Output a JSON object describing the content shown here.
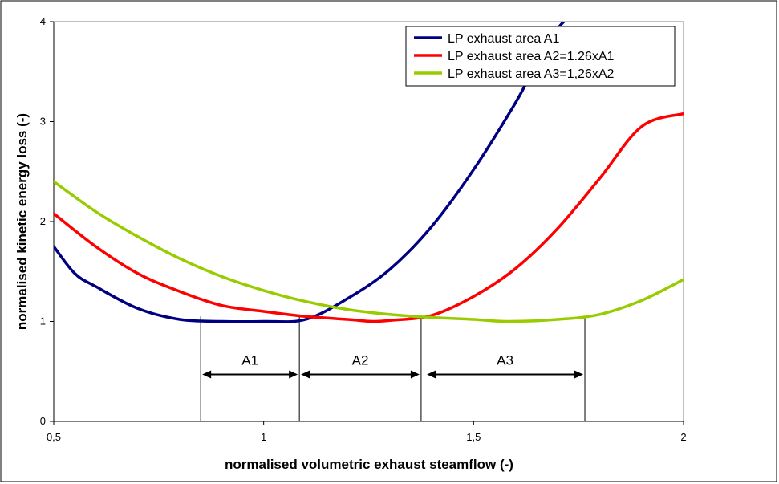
{
  "chart_data": {
    "type": "line",
    "title": "",
    "xlabel": "normalised volumetric exhaust steamflow (-)",
    "ylabel": "normalised kinetic energy loss (-)",
    "xlim": [
      0.5,
      2
    ],
    "ylim": [
      0,
      4
    ],
    "grid": false,
    "legend_position": "top-right",
    "x_ticks": [
      {
        "value": 0.5,
        "label": "0,5"
      },
      {
        "value": 1,
        "label": "1"
      },
      {
        "value": 1.5,
        "label": "1,5"
      },
      {
        "value": 2,
        "label": "2"
      }
    ],
    "y_ticks": [
      {
        "value": 0,
        "label": "0"
      },
      {
        "value": 1,
        "label": "1"
      },
      {
        "value": 2,
        "label": "2"
      },
      {
        "value": 3,
        "label": "3"
      },
      {
        "value": 4,
        "label": "4"
      }
    ],
    "series": [
      {
        "name": "LP exhaust area A1",
        "color": "#000080",
        "points": [
          [
            0.5,
            1.75
          ],
          [
            0.55,
            1.48
          ],
          [
            0.6,
            1.35
          ],
          [
            0.7,
            1.13
          ],
          [
            0.8,
            1.02
          ],
          [
            0.9,
            1.0
          ],
          [
            1.0,
            1.0
          ],
          [
            1.1,
            1.02
          ],
          [
            1.2,
            1.23
          ],
          [
            1.3,
            1.52
          ],
          [
            1.4,
            1.95
          ],
          [
            1.5,
            2.52
          ],
          [
            1.6,
            3.19
          ],
          [
            1.7,
            3.93
          ],
          [
            1.8,
            4.26
          ]
        ]
      },
      {
        "name": "LP exhaust area A2=1.26xA1",
        "color": "#ff0000",
        "points": [
          [
            0.5,
            2.08
          ],
          [
            0.6,
            1.75
          ],
          [
            0.7,
            1.48
          ],
          [
            0.8,
            1.3
          ],
          [
            0.9,
            1.16
          ],
          [
            1.0,
            1.1
          ],
          [
            1.1,
            1.05
          ],
          [
            1.2,
            1.02
          ],
          [
            1.26,
            1.0
          ],
          [
            1.3,
            1.01
          ],
          [
            1.4,
            1.06
          ],
          [
            1.5,
            1.25
          ],
          [
            1.6,
            1.53
          ],
          [
            1.7,
            1.93
          ],
          [
            1.8,
            2.43
          ],
          [
            1.9,
            2.95
          ],
          [
            2.0,
            3.08
          ]
        ]
      },
      {
        "name": "LP exhaust area A3=1,26xA2",
        "color": "#99cc00",
        "points": [
          [
            0.5,
            2.4
          ],
          [
            0.6,
            2.1
          ],
          [
            0.7,
            1.85
          ],
          [
            0.8,
            1.63
          ],
          [
            0.9,
            1.45
          ],
          [
            1.0,
            1.31
          ],
          [
            1.1,
            1.2
          ],
          [
            1.2,
            1.12
          ],
          [
            1.3,
            1.07
          ],
          [
            1.4,
            1.04
          ],
          [
            1.5,
            1.02
          ],
          [
            1.58,
            1.0
          ],
          [
            1.7,
            1.02
          ],
          [
            1.8,
            1.07
          ],
          [
            1.9,
            1.21
          ],
          [
            2.0,
            1.42
          ]
        ]
      }
    ],
    "annotations": {
      "dividers": [
        0.85,
        1.085,
        1.375,
        1.765
      ],
      "ranges": [
        {
          "label": "A1",
          "x_start": 0.85,
          "x_end": 1.085
        },
        {
          "label": "A2",
          "x_start": 1.085,
          "x_end": 1.375
        },
        {
          "label": "A3",
          "x_start": 1.385,
          "x_end": 1.765
        }
      ]
    }
  }
}
